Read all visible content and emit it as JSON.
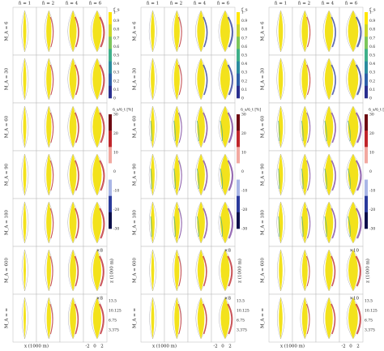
{
  "blocks": [
    {
      "columns": [
        "n̄ = 1",
        "n̄ = 2",
        "n̄ = 4",
        "n̄ = 6"
      ],
      "rows": [
        "M_A = 6",
        "M_A = 30",
        "M_A = 60",
        "M_A = 90",
        "M_A = 180",
        "M_A = 600",
        "M_A = ∞"
      ],
      "fs_label": "f_s",
      "fs_ticks": [
        "1",
        "0.9",
        "0.8",
        "0.7",
        "0.6",
        "0.5",
        "0.4",
        "0.3",
        "0.2",
        "0.1",
        "0"
      ],
      "diff_label": "ū_s/ū_t [%]",
      "diff_ticks": [
        "30",
        "20",
        "10",
        "0",
        "-10",
        "-20",
        "-30"
      ],
      "magnification": [
        "×8",
        "×8"
      ],
      "depth_label": "z (1000 m)",
      "scale_ticks": [
        "13.5",
        "10.125",
        "6.75",
        "3.375"
      ],
      "x_label": "x (1000 m)",
      "x_ticks": [
        "-2",
        "0",
        "2"
      ]
    },
    {
      "columns": [
        "n̄ = 1",
        "n̄ = 2",
        "n̄ = 4",
        "n̄ = 6"
      ],
      "rows": [
        "M_A = 6",
        "M_A = 30",
        "M_A = 60",
        "M_A = 90",
        "M_A = 180",
        "M_A = 600",
        "M_A = ∞"
      ],
      "fs_label": "f_s",
      "fs_ticks": [
        "1",
        "0.9",
        "0.8",
        "0.7",
        "0.6",
        "0.5",
        "0.4",
        "0.3",
        "0.2",
        "0.1",
        "0"
      ],
      "diff_label": "ū_s/ū_t [%]",
      "diff_ticks": [
        "30",
        "20",
        "10",
        "0",
        "-10",
        "-20",
        "-30"
      ],
      "magnification": [
        "×8",
        "×8"
      ],
      "depth_label": "z (1000 m)",
      "scale_ticks": [
        "13.5",
        "10.125",
        "6.75",
        "3.375"
      ],
      "x_label": "x (1000 m)",
      "x_ticks": [
        "-2",
        "0",
        "2"
      ]
    },
    {
      "columns": [
        "n̄ = 1",
        "n̄ = 2",
        "n̄ = 4",
        "n̄ = 6"
      ],
      "rows": [
        "M_A = 6",
        "M_A = 30",
        "M_A = 60",
        "M_A = 90",
        "M_A = 180",
        "M_A = 600",
        "M_A = ∞"
      ],
      "fs_label": "f_s",
      "fs_ticks": [
        "1",
        "0.9",
        "0.8",
        "0.7",
        "0.6",
        "0.5",
        "0.4",
        "0.3",
        "0.2",
        "0.1",
        "0"
      ],
      "diff_label": "ū_s/ū_t [%]",
      "diff_ticks": [
        "30",
        "20",
        "10",
        "0",
        "-10",
        "-20",
        "-30"
      ],
      "magnification": [
        "×10",
        "×10"
      ],
      "depth_label": "z (1000 m)",
      "scale_ticks": [
        "13.5",
        "10.125",
        "6.75",
        "3.375"
      ],
      "x_label": "x (1000 m)",
      "x_ticks": [
        "-2",
        "0",
        "2"
      ]
    }
  ]
}
